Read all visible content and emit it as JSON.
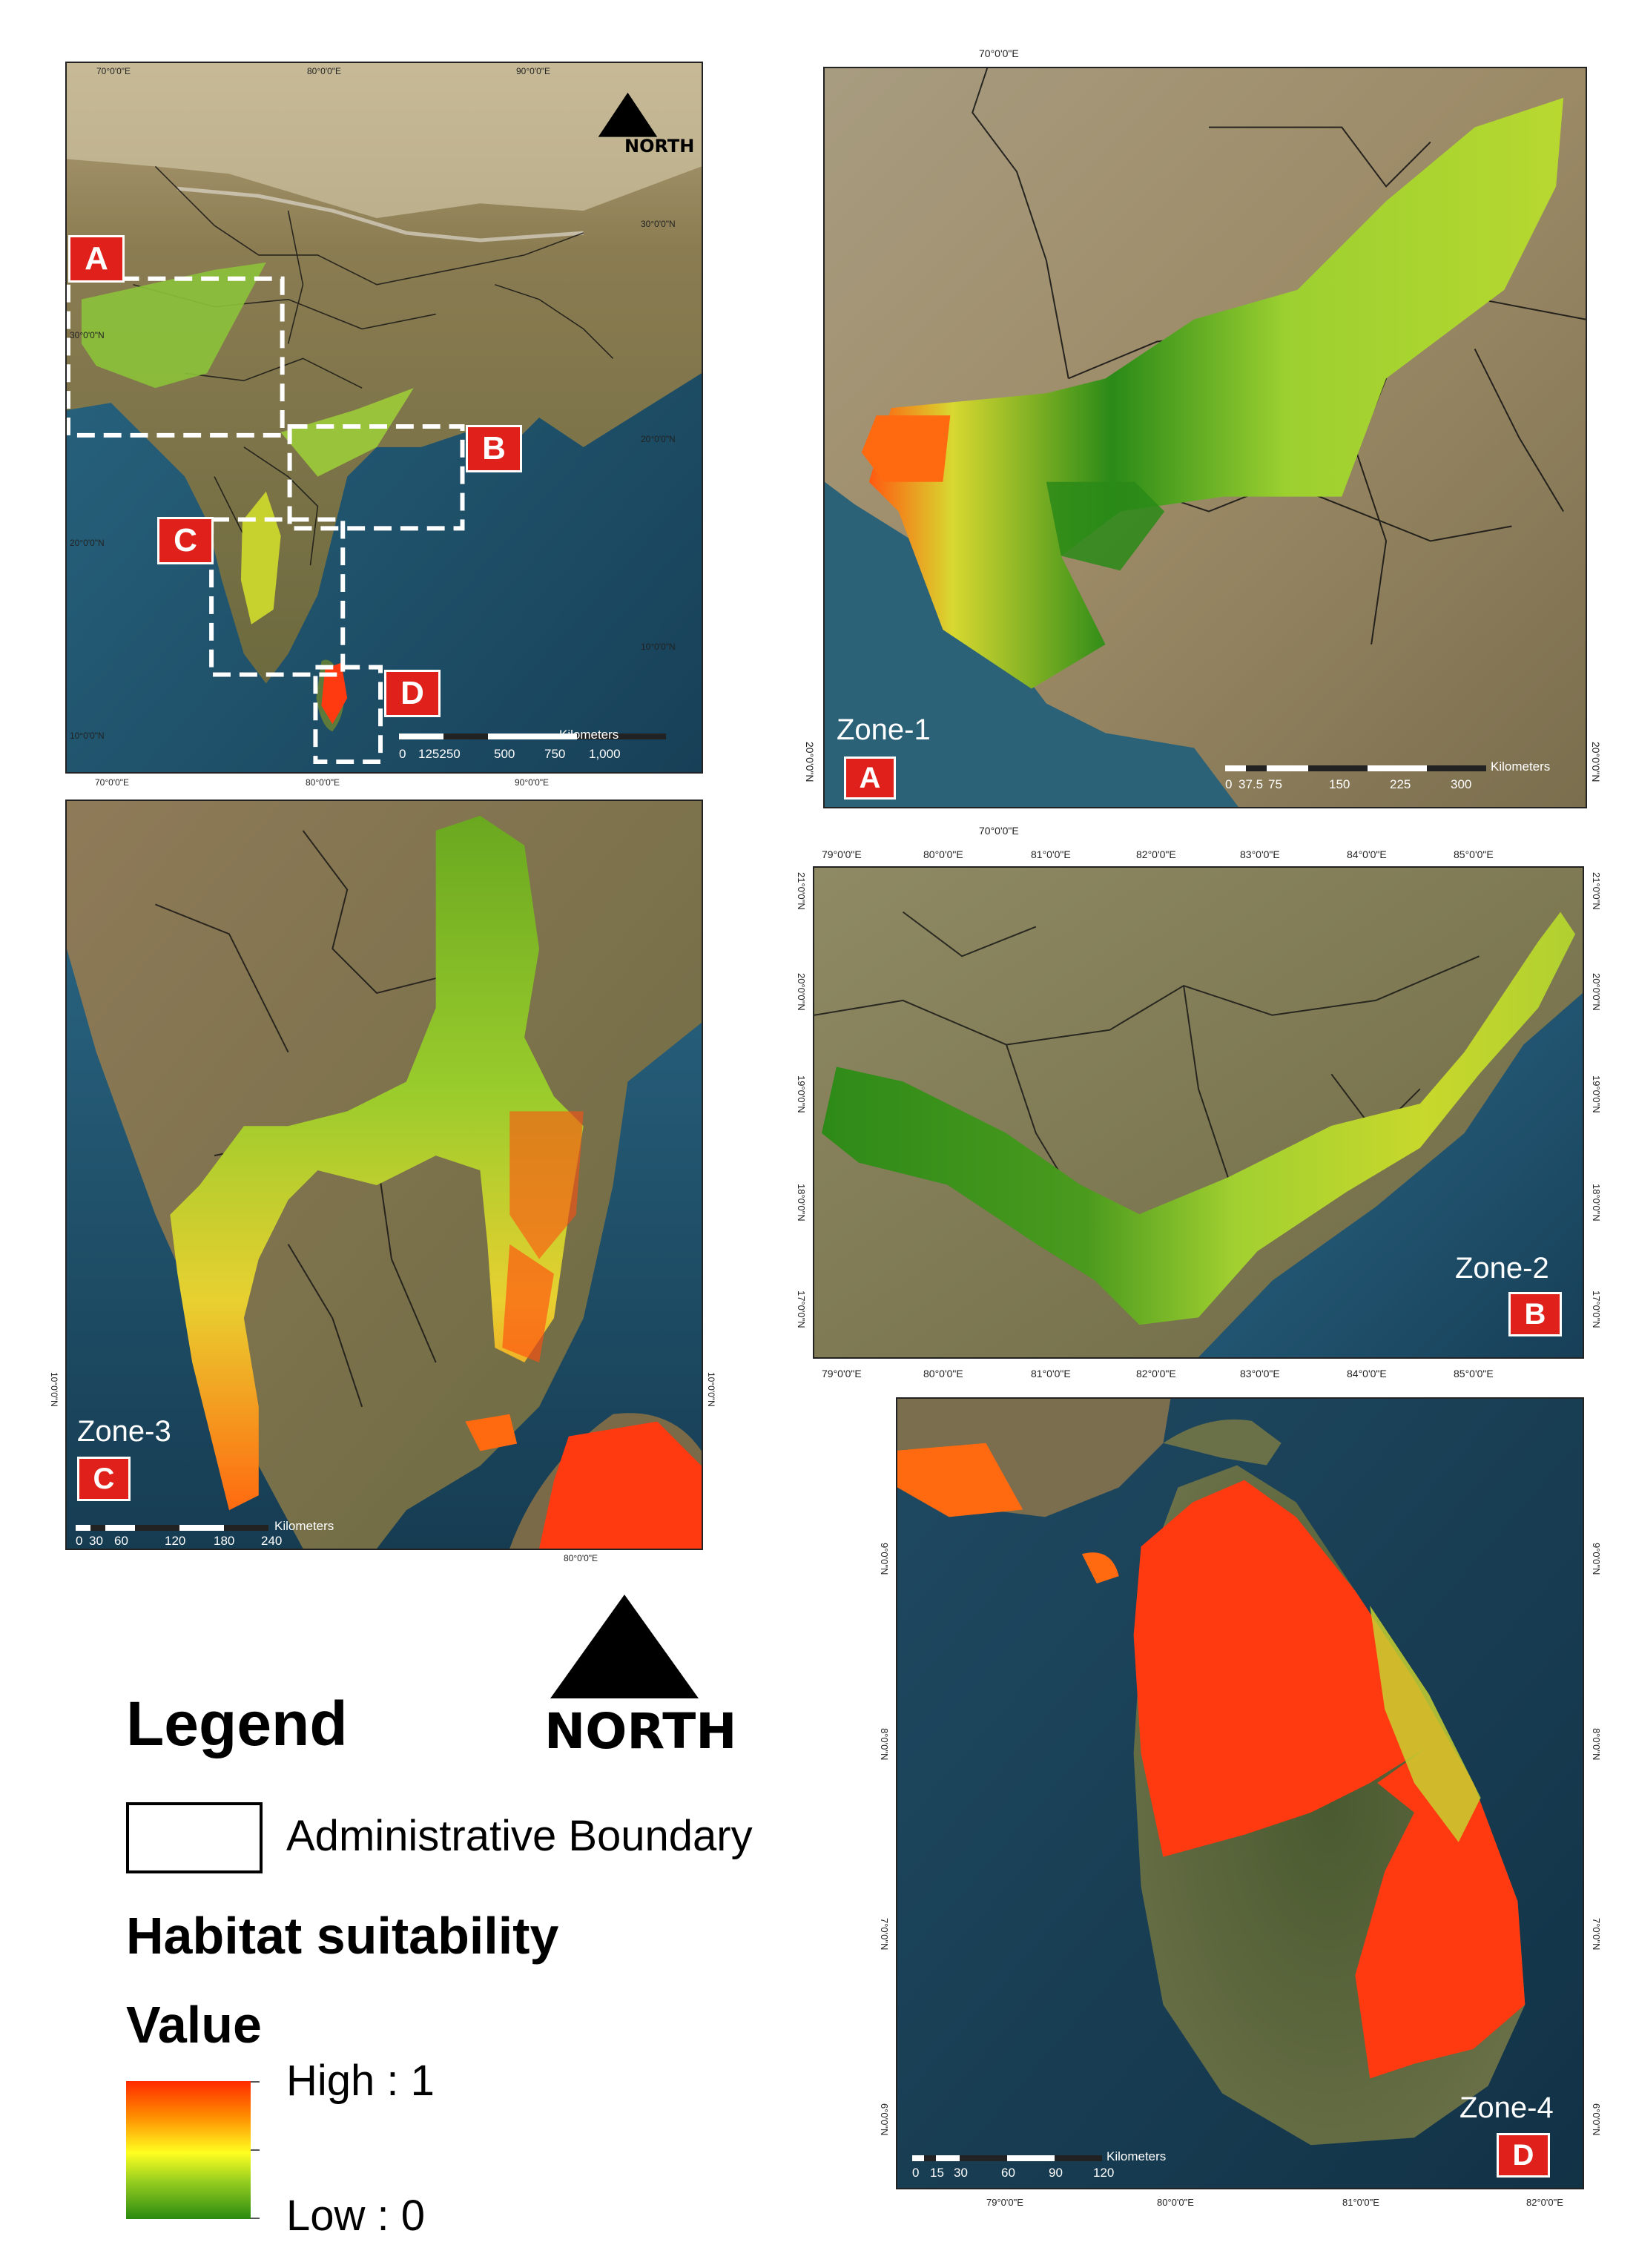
{
  "overview": {
    "top_ticks": [
      "70°0'0\"E",
      "80°0'0\"E",
      "90°0'0\"E"
    ],
    "bottom_ticks": [
      "70°0'0\"E",
      "80°0'0\"E",
      "90°0'0\"E"
    ],
    "left_ticks": [
      "30°0'0\"N",
      "20°0'0\"N",
      "10°0'0\"N"
    ],
    "right_ticks": [
      "30°0'0\"N",
      "20°0'0\"N",
      "10°0'0\"N"
    ],
    "north_label": "NORTH",
    "boxes": [
      "A",
      "B",
      "C",
      "D"
    ],
    "scale": {
      "labels": [
        "0",
        "125250",
        "500",
        "750",
        "1,000"
      ],
      "unit": "Kilometers"
    }
  },
  "zone1": {
    "zone_label": "Zone-1",
    "badge": "A",
    "top_tick": "70°0'0\"E",
    "bottom_tick": "70°0'0\"E",
    "left_tick": "20°0'0\"N",
    "right_tick": "20°0'0\"N",
    "scale": {
      "labels": [
        "0",
        "37.5",
        "75",
        "150",
        "225",
        "300"
      ],
      "unit": "Kilometers"
    }
  },
  "zone2": {
    "zone_label": "Zone-2",
    "badge": "B",
    "top_ticks": [
      "79°0'0\"E",
      "80°0'0\"E",
      "81°0'0\"E",
      "82°0'0\"E",
      "83°0'0\"E",
      "84°0'0\"E",
      "85°0'0\"E"
    ],
    "bottom_ticks": [
      "79°0'0\"E",
      "80°0'0\"E",
      "81°0'0\"E",
      "82°0'0\"E",
      "83°0'0\"E",
      "84°0'0\"E",
      "85°0'0\"E"
    ],
    "left_ticks": [
      "21°0'0\"N",
      "20°0'0\"N",
      "19°0'0\"N",
      "18°0'0\"N",
      "17°0'0\"N"
    ],
    "right_ticks": [
      "21°0'0\"N",
      "20°0'0\"N",
      "19°0'0\"N",
      "18°0'0\"N",
      "17°0'0\"N"
    ]
  },
  "zone3": {
    "zone_label": "Zone-3",
    "badge": "C",
    "bottom_tick": "80°0'0\"E",
    "left_tick": "10°0'0\"N",
    "right_tick": "10°0'0\"N",
    "scale": {
      "labels": [
        "0",
        "30",
        "60",
        "120",
        "180",
        "240"
      ],
      "unit": "Kilometers"
    }
  },
  "zone4": {
    "zone_label": "Zone-4",
    "badge": "D",
    "bottom_ticks": [
      "79°0'0\"E",
      "80°0'0\"E",
      "81°0'0\"E",
      "82°0'0\"E"
    ],
    "left_ticks": [
      "9°0'0\"N",
      "8°0'0\"N",
      "7°0'0\"N",
      "6°0'0\"N"
    ],
    "right_ticks": [
      "9°0'0\"N",
      "8°0'0\"N",
      "7°0'0\"N",
      "6°0'0\"N"
    ],
    "scale": {
      "labels": [
        "0",
        "15",
        "30",
        "60",
        "90",
        "120"
      ],
      "unit": "Kilometers"
    }
  },
  "legend": {
    "north_label": "NORTH",
    "title": "Legend",
    "boundary_label": "Administrative Boundary",
    "habitat_title": "Habitat suitability",
    "value_title": "Value",
    "high_label": "High : 1",
    "low_label": "Low : 0"
  },
  "colors": {
    "high": "#ff2a00",
    "mid": "#ffff20",
    "low": "#2a8a10",
    "badge": "#e0201b",
    "ocean": "#1e4f66",
    "land": "#7a6a4a"
  }
}
